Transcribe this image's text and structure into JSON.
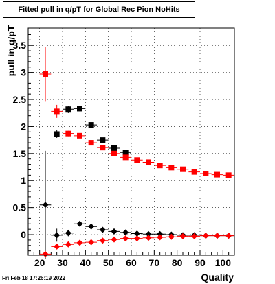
{
  "chart_data": {
    "type": "scatter",
    "title": "Fitted pull in q/pT for Global Rec Pion NoHits",
    "xlabel": "Quality",
    "ylabel": "pull in q/pT",
    "xlim": [
      15,
      105
    ],
    "ylim": [
      -0.38,
      3.82
    ],
    "x_ticks": [
      20,
      30,
      40,
      50,
      60,
      70,
      80,
      90,
      100
    ],
    "y_ticks": [
      0,
      0.5,
      1,
      1.5,
      2,
      2.5,
      3,
      3.5
    ],
    "grid": true,
    "series": [
      {
        "color": "#000000",
        "marker": "square",
        "x": [
          27.5,
          32.5,
          37.5,
          42.5,
          47.5,
          52.5,
          57.5
        ],
        "y": [
          1.86,
          2.32,
          2.33,
          2.03,
          1.75,
          1.6,
          1.52
        ],
        "yerr": [
          0.07,
          0.06,
          0.05,
          0.03,
          0.03,
          0.02,
          0.02
        ]
      },
      {
        "color": "#ff0000",
        "marker": "square",
        "x": [
          22.5,
          27.5,
          32.5,
          37.5,
          42.5,
          47.5,
          52.5,
          57.5,
          62.5,
          67.5,
          72.5,
          77.5,
          82.5,
          87.5,
          92.5,
          97.5,
          102.5
        ],
        "y": [
          2.97,
          2.28,
          1.87,
          1.83,
          1.7,
          1.61,
          1.5,
          1.43,
          1.38,
          1.34,
          1.28,
          1.24,
          1.21,
          1.16,
          1.13,
          1.11,
          1.1
        ],
        "yerr": [
          0.5,
          0.12,
          0.05,
          0.04,
          0.03,
          0.03,
          0.02,
          0.02,
          0.02,
          0.02,
          0.02,
          0.02,
          0.02,
          0.02,
          0.02,
          0.02,
          0.02
        ]
      },
      {
        "color": "#000000",
        "marker": "diamond",
        "x": [
          22.5,
          27.5,
          32.5,
          37.5,
          42.5,
          47.5,
          52.5,
          57.5,
          62.5,
          67.5,
          72.5,
          77.5,
          82.5,
          87.5,
          92.5,
          97.5,
          102.5
        ],
        "y": [
          0.55,
          -0.01,
          0.03,
          0.2,
          0.15,
          0.09,
          0.06,
          0.04,
          0.02,
          0.01,
          0.01,
          0.0,
          -0.01,
          -0.01,
          -0.02,
          -0.02,
          -0.02
        ],
        "yerr": [
          1.0,
          0.12,
          0.06,
          0.03,
          0.02,
          0.02,
          0.02,
          0.02,
          0.02,
          0.02,
          0.02,
          0.02,
          0.02,
          0.02,
          0.02,
          0.02,
          0.02
        ]
      },
      {
        "color": "#ff0000",
        "marker": "diamond",
        "x": [
          22.5,
          27.5,
          32.5,
          37.5,
          42.5,
          47.5,
          52.5,
          57.5,
          62.5,
          67.5,
          72.5,
          77.5,
          82.5,
          87.5,
          92.5,
          97.5,
          102.5
        ],
        "y": [
          -0.36,
          -0.22,
          -0.18,
          -0.15,
          -0.14,
          -0.11,
          -0.09,
          -0.07,
          -0.07,
          -0.06,
          -0.05,
          -0.04,
          -0.03,
          -0.03,
          -0.02,
          -0.02,
          -0.02
        ],
        "yerr": [
          0.06,
          0.05,
          0.03,
          0.02,
          0.02,
          0.02,
          0.02,
          0.02,
          0.02,
          0.02,
          0.02,
          0.02,
          0.02,
          0.02,
          0.02,
          0.02,
          0.02
        ]
      }
    ]
  },
  "timestamp": "Fri Feb 18 17:26:19 2022"
}
